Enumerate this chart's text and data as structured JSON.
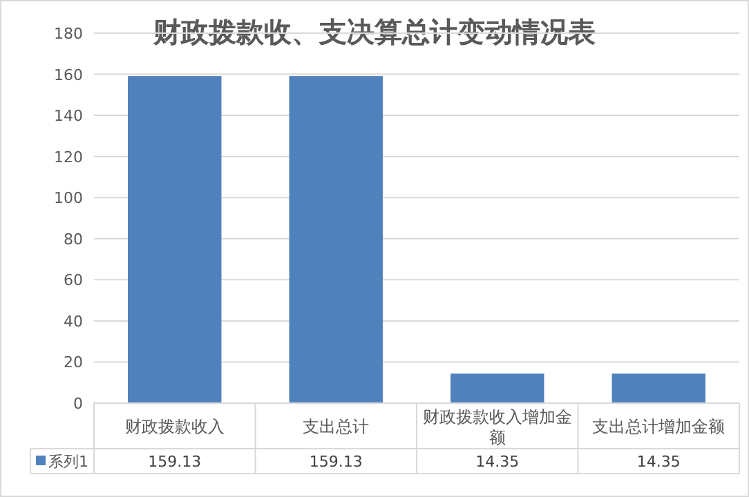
{
  "chart_data": {
    "type": "bar",
    "title": "财政拨款收、支决算总计变动情况表",
    "categories": [
      "财政拨款收入",
      "支出总计",
      "财政拨款收入增加金额",
      "支出总计增加金额"
    ],
    "series": [
      {
        "name": "系列1",
        "color": "#4f81bd",
        "values": [
          159.13,
          159.13,
          14.35,
          14.35
        ]
      }
    ],
    "ylim": [
      0,
      180
    ],
    "yticks": [
      0,
      20,
      40,
      60,
      80,
      100,
      120,
      140,
      160,
      180
    ],
    "grid": "y",
    "legend": "bottom",
    "data_labels": true
  }
}
